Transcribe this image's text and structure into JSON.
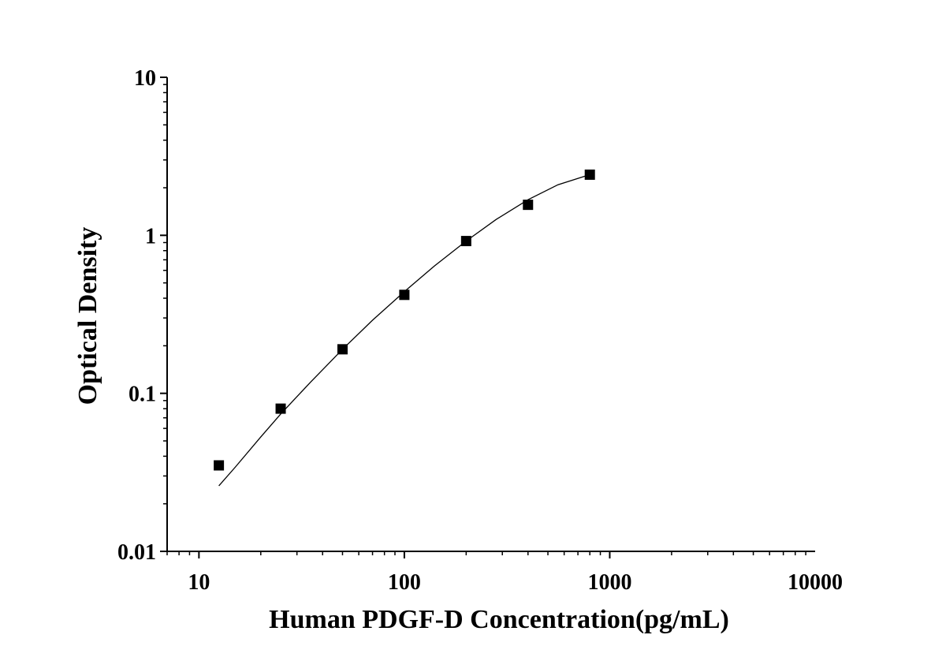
{
  "chart_data": {
    "type": "scatter",
    "xlabel": "Human PDGF-D Concentration(pg/mL)",
    "ylabel": "Optical Density",
    "x_scale": "log",
    "y_scale": "log",
    "xlim": [
      7,
      10000
    ],
    "ylim": [
      0.01,
      10
    ],
    "x_ticks": [
      10,
      100,
      1000,
      10000
    ],
    "x_tick_labels": [
      "10",
      "100",
      "1000",
      "10000"
    ],
    "y_ticks": [
      0.01,
      0.1,
      1,
      10
    ],
    "y_tick_labels": [
      "0.01",
      "0.1",
      "1",
      "10"
    ],
    "grid": false,
    "series": [
      {
        "x": [
          12.5,
          25,
          50,
          100,
          200,
          400,
          800
        ],
        "y": [
          0.035,
          0.08,
          0.19,
          0.42,
          0.92,
          1.56,
          2.42
        ],
        "marker": "square",
        "color": "#000000"
      }
    ],
    "fit_curve": {
      "x": [
        12.5,
        15,
        20,
        25,
        35,
        50,
        70,
        100,
        140,
        200,
        280,
        400,
        560,
        800
      ],
      "y": [
        0.026,
        0.034,
        0.053,
        0.074,
        0.118,
        0.19,
        0.29,
        0.44,
        0.64,
        0.92,
        1.26,
        1.68,
        2.09,
        2.42
      ],
      "color": "#000000"
    }
  }
}
